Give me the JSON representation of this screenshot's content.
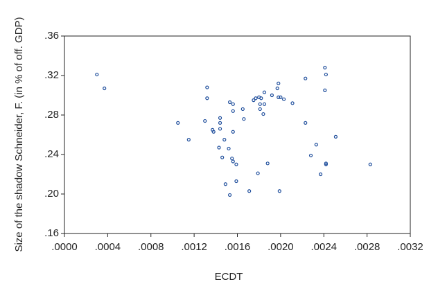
{
  "chart_data": {
    "type": "scatter",
    "x_label": "ECDT",
    "y_label": "Size of the shadow Schneider, F. (in % of off. GDP)",
    "color": "#1f4e9c",
    "xlim": [
      0,
      0.0032
    ],
    "ylim": [
      0.16,
      0.36
    ],
    "xticks": [
      {
        "value": 0,
        "label": ".0000"
      },
      {
        "value": 0.0004,
        "label": ".0004"
      },
      {
        "value": 0.0008,
        "label": ".0008"
      },
      {
        "value": 0.0012,
        "label": ".0012"
      },
      {
        "value": 0.0016,
        "label": ".0016"
      },
      {
        "value": 0.002,
        "label": ".0020"
      },
      {
        "value": 0.0024,
        "label": ".0024"
      },
      {
        "value": 0.0028,
        "label": ".0028"
      },
      {
        "value": 0.0032,
        "label": ".0032"
      }
    ],
    "yticks": [
      {
        "value": 0.16,
        "label": ".16"
      },
      {
        "value": 0.2,
        "label": ".20"
      },
      {
        "value": 0.24,
        "label": ".24"
      },
      {
        "value": 0.28,
        "label": ".28"
      },
      {
        "value": 0.32,
        "label": ".32"
      },
      {
        "value": 0.36,
        "label": ".36"
      }
    ],
    "x": [
      0.0003,
      0.00037,
      0.00105,
      0.00115,
      0.0013,
      0.00132,
      0.00132,
      0.00137,
      0.00138,
      0.00143,
      0.00144,
      0.00144,
      0.00144,
      0.00146,
      0.00148,
      0.00149,
      0.00152,
      0.00153,
      0.00153,
      0.00155,
      0.00156,
      0.00156,
      0.00156,
      0.00156,
      0.00159,
      0.00159,
      0.00165,
      0.00166,
      0.00171,
      0.00175,
      0.00177,
      0.00179,
      0.0018,
      0.00181,
      0.00181,
      0.00182,
      0.00184,
      0.00185,
      0.00185,
      0.00188,
      0.00192,
      0.00197,
      0.00198,
      0.00198,
      0.00199,
      0.002,
      0.00203,
      0.00211,
      0.00223,
      0.00223,
      0.00228,
      0.00233,
      0.00237,
      0.00241,
      0.00242,
      0.00241,
      0.00242,
      0.00242,
      0.00251,
      0.00283
    ],
    "values": [
      0.321,
      0.307,
      0.272,
      0.255,
      0.274,
      0.297,
      0.308,
      0.265,
      0.263,
      0.247,
      0.266,
      0.272,
      0.277,
      0.237,
      0.255,
      0.21,
      0.246,
      0.293,
      0.199,
      0.236,
      0.291,
      0.284,
      0.263,
      0.233,
      0.23,
      0.213,
      0.286,
      0.276,
      0.203,
      0.295,
      0.297,
      0.221,
      0.298,
      0.291,
      0.286,
      0.297,
      0.281,
      0.303,
      0.291,
      0.231,
      0.3,
      0.307,
      0.312,
      0.298,
      0.203,
      0.298,
      0.296,
      0.292,
      0.317,
      0.272,
      0.239,
      0.25,
      0.22,
      0.328,
      0.321,
      0.305,
      0.231,
      0.23,
      0.258,
      0.23
    ]
  }
}
